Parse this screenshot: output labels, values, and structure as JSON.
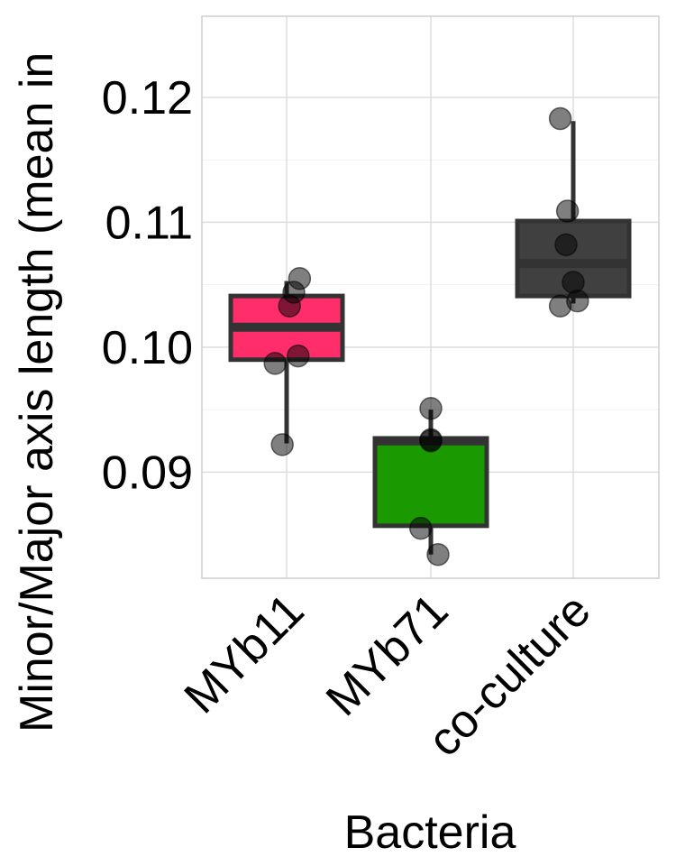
{
  "chart_data": {
    "type": "box",
    "title": "",
    "xlabel": "Bacteria",
    "ylabel": "Minor/Major axis length (mean in",
    "categories": [
      "MYb11",
      "MYb71",
      "co-culture"
    ],
    "ylim": [
      0.0815,
      0.1265
    ],
    "yticks": [
      0.09,
      0.1,
      0.11,
      0.12
    ],
    "ytick_labels": [
      "0.09",
      "0.10",
      "0.11",
      "0.12"
    ],
    "grid": true,
    "legend": "none",
    "boxes": [
      {
        "category": "MYb11",
        "color": "#FF2D6A",
        "whisker_low": 0.0923,
        "q1": 0.099,
        "median": 0.1016,
        "q3": 0.1041,
        "whisker_high": 0.1053
      },
      {
        "category": "MYb71",
        "color": "#1A9900",
        "whisker_low": 0.0834,
        "q1": 0.0857,
        "median": 0.0925,
        "q3": 0.0927,
        "whisker_high": 0.095
      },
      {
        "category": "co-culture",
        "color": "#404040",
        "whisker_low": 0.1035,
        "q1": 0.1041,
        "median": 0.1067,
        "q3": 0.1101,
        "whisker_high": 0.1181
      }
    ],
    "points": [
      {
        "category": "MYb11",
        "values": [
          0.1055,
          0.1044,
          0.1033,
          0.0993,
          0.0987,
          0.0922
        ]
      },
      {
        "category": "MYb71",
        "values": [
          0.0951,
          0.0926,
          0.0925,
          0.0855,
          0.0834
        ]
      },
      {
        "category": "co-culture",
        "values": [
          0.1183,
          0.1109,
          0.1082,
          0.1052,
          0.1037,
          0.1033
        ]
      }
    ],
    "point_jitter": [
      [
        0.09,
        0.05,
        0.02,
        0.08,
        -0.08,
        -0.03
      ],
      [
        0.0,
        0.0,
        0.0,
        -0.07,
        0.05
      ],
      [
        -0.09,
        -0.04,
        -0.05,
        0.0,
        0.03,
        -0.09
      ]
    ]
  }
}
